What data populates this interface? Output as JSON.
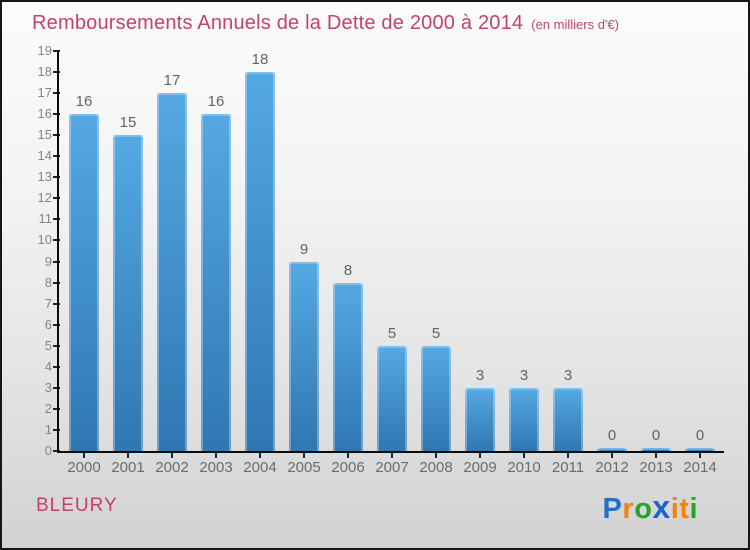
{
  "header": {
    "title": "Remboursements Annuels de la Dette de 2000 à 2014",
    "subtitle": "(en milliers d'€)"
  },
  "chart_data": {
    "type": "bar",
    "title": "Remboursements Annuels de la Dette de 2000 à 2014",
    "subtitle": "(en milliers d'€)",
    "categories": [
      "2000",
      "2001",
      "2002",
      "2003",
      "2004",
      "2005",
      "2006",
      "2007",
      "2008",
      "2009",
      "2010",
      "2011",
      "2012",
      "2013",
      "2014"
    ],
    "values": [
      16,
      15,
      17,
      16,
      18,
      9,
      8,
      5,
      5,
      3,
      3,
      3,
      0,
      0,
      0
    ],
    "xlabel": "",
    "ylabel": "",
    "ylim": [
      0,
      19
    ],
    "y_tick_step": 1,
    "grid": false,
    "legend": "none",
    "value_labels_shown": true,
    "bar_color_top": "#55a9e2",
    "bar_color_bottom": "#2f77b2"
  },
  "footer": {
    "commune": "BLEURY",
    "logo_text": "Proxiti",
    "logo_letters": [
      {
        "char": "P",
        "color": "#1f6fd2"
      },
      {
        "char": "r",
        "color": "#f5820a"
      },
      {
        "char": "o",
        "color": "#27a327"
      },
      {
        "char": "x",
        "color": "#1a64c8"
      },
      {
        "char": "i",
        "color": "#f5820a"
      },
      {
        "char": "t",
        "color": "#f5820a"
      },
      {
        "char": "i",
        "color": "#27a327"
      }
    ]
  },
  "colors": {
    "title_pink": "#c7406a",
    "value_label_gray": "#646464",
    "y_tick_gray": "#848484",
    "axis_black": "#0a0a0a"
  }
}
